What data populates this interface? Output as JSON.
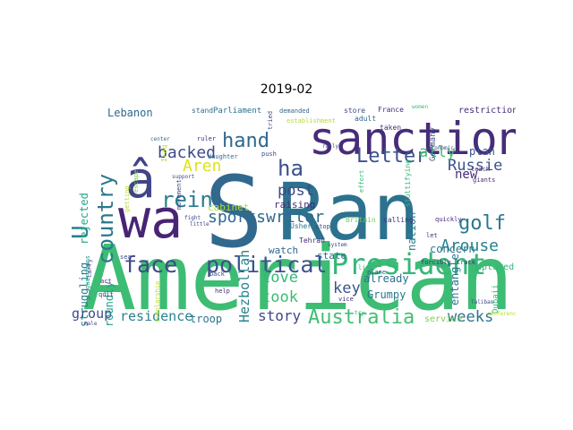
{
  "title": "2019-02",
  "chart_data": {
    "type": "wordcloud",
    "title": "2019-02",
    "colormap": "viridis",
    "background": "#ffffff",
    "words": [
      {
        "text": "American",
        "color": "#3dbc74"
      },
      {
        "text": "Ran",
        "color": "#2c728e"
      },
      {
        "text": "S",
        "color": "#31688e"
      },
      {
        "text": "wa",
        "color": "#482475"
      },
      {
        "text": "â",
        "color": "#414487"
      },
      {
        "text": "sanction",
        "color": "#472c7a"
      },
      {
        "text": "President",
        "color": "#35b779"
      },
      {
        "text": "political",
        "color": "#3b528b"
      },
      {
        "text": "face",
        "color": "#3e4989"
      },
      {
        "text": "ha",
        "color": "#3b528b"
      },
      {
        "text": "country",
        "color": "#2a788e"
      },
      {
        "text": "rein",
        "color": "#287c8e"
      },
      {
        "text": "Letter",
        "color": "#3b528b"
      },
      {
        "text": "U",
        "color": "#277f8e"
      },
      {
        "text": "hand",
        "color": "#31688e"
      },
      {
        "text": "Australia",
        "color": "#42be71"
      },
      {
        "text": "sportswriter",
        "color": "#30698e"
      },
      {
        "text": "backed",
        "color": "#3e4a89"
      },
      {
        "text": "residence",
        "color": "#26828e"
      },
      {
        "text": "Aren",
        "color": "#dde318"
      },
      {
        "text": "golf",
        "color": "#2a788e"
      },
      {
        "text": "Arouse",
        "color": "#26828e"
      },
      {
        "text": "story",
        "color": "#3e4989"
      },
      {
        "text": "weeks",
        "color": "#2c718e"
      },
      {
        "text": "Russie",
        "color": "#3b528b"
      },
      {
        "text": "ally",
        "color": "#44bf70"
      },
      {
        "text": "post",
        "color": "#3e4989"
      },
      {
        "text": "took",
        "color": "#3dbc74"
      },
      {
        "text": "love",
        "color": "#35b779"
      },
      {
        "text": "key",
        "color": "#3b528b"
      },
      {
        "text": "Hezbollah",
        "color": "#25838e"
      },
      {
        "text": "group",
        "color": "#3e4a89"
      },
      {
        "text": "Lebanon",
        "color": "#31688e"
      },
      {
        "text": "new",
        "color": "#472c7a"
      },
      {
        "text": "entangle",
        "color": "#2a788e"
      },
      {
        "text": "troop",
        "color": "#2c728e"
      },
      {
        "text": "struggling",
        "color": "#277f8e"
      },
      {
        "text": "roundly",
        "color": "#1fa088"
      },
      {
        "text": "rejected",
        "color": "#22a884"
      },
      {
        "text": "plan",
        "color": "#3b528b"
      },
      {
        "text": "nation",
        "color": "#27808e"
      },
      {
        "text": "Grumpy",
        "color": "#2a788e"
      },
      {
        "text": "already",
        "color": "#2c718e"
      },
      {
        "text": "concern",
        "color": "#2a788e"
      },
      {
        "text": "state",
        "color": "#31688e"
      },
      {
        "text": "watch",
        "color": "#31688e"
      },
      {
        "text": "raising",
        "color": "#472d7b"
      },
      {
        "text": "cabinet",
        "color": "#b5de2b"
      },
      {
        "text": "Parliament",
        "color": "#2c718e"
      },
      {
        "text": "restriction",
        "color": "#472d7b"
      },
      {
        "text": "captured",
        "color": "#35b779"
      },
      {
        "text": "service",
        "color": "#7ad151"
      },
      {
        "text": "Dubaii",
        "color": "#35b779"
      },
      {
        "text": "Britain",
        "color": "#6ece58"
      },
      {
        "text": "calling",
        "color": "#472d7b"
      },
      {
        "text": "France",
        "color": "#472d7b"
      },
      {
        "text": "store",
        "color": "#3e4a89"
      },
      {
        "text": "adult",
        "color": "#31688e"
      },
      {
        "text": "Germany",
        "color": "#3b528b"
      },
      {
        "text": "stultifying",
        "color": "#35b779"
      },
      {
        "text": "Tehran",
        "color": "#472d7b"
      },
      {
        "text": "Usher",
        "color": "#2c718e"
      },
      {
        "text": "stand",
        "color": "#31688e"
      },
      {
        "text": "women",
        "color": "#3dbc74"
      },
      {
        "text": "taken",
        "color": "#472d7b"
      },
      {
        "text": "demanded",
        "color": "#31688e"
      },
      {
        "text": "establishment",
        "color": "#b5de2b"
      },
      {
        "text": "push",
        "color": "#3e4a89"
      },
      {
        "text": "ruler",
        "color": "#472d7b"
      },
      {
        "text": "daughter",
        "color": "#31688e"
      },
      {
        "text": "Iraq",
        "color": "#b5de2b"
      },
      {
        "text": "back",
        "color": "#3e4a89"
      },
      {
        "text": "quickly",
        "color": "#472c7a"
      },
      {
        "text": "forcibly",
        "color": "#472d7b"
      },
      {
        "text": "track",
        "color": "#472d7b"
      },
      {
        "text": "life",
        "color": "#35b779"
      },
      {
        "text": "plane",
        "color": "#3e4a89"
      },
      {
        "text": "vice",
        "color": "#472d7b"
      },
      {
        "text": "help",
        "color": "#472d7b"
      },
      {
        "text": "quit",
        "color": "#472d7b"
      },
      {
        "text": "act",
        "color": "#472d7b"
      },
      {
        "text": "sea",
        "color": "#3e4a89"
      },
      {
        "text": "guardians",
        "color": "#1fa088"
      },
      {
        "text": "male",
        "color": "#3e4a89"
      },
      {
        "text": "teach",
        "color": "#472d7b"
      },
      {
        "text": "giants",
        "color": "#472d7b"
      },
      {
        "text": "let",
        "color": "#472d7b"
      },
      {
        "text": "economic",
        "color": "#3e4a89"
      },
      {
        "text": "effort",
        "color": "#35b779"
      },
      {
        "text": "tried",
        "color": "#3e4a89"
      },
      {
        "text": "escape",
        "color": "#7ad151"
      },
      {
        "text": "movement",
        "color": "#3e4a89"
      },
      {
        "text": "scholarship",
        "color": "#b5de2b"
      },
      {
        "text": "carry",
        "color": "#3e4a89"
      },
      {
        "text": "getting",
        "color": "#b5de2b"
      },
      {
        "text": "support",
        "color": "#3e4a89"
      },
      {
        "text": "center",
        "color": "#31688e"
      },
      {
        "text": "conference",
        "color": "#b5de2b"
      },
      {
        "text": "stop",
        "color": "#3e4a89"
      },
      {
        "text": "fight",
        "color": "#3e4a89"
      },
      {
        "text": "little",
        "color": "#3e4a89"
      },
      {
        "text": "rally",
        "color": "#3e4a89"
      },
      {
        "text": "try",
        "color": "#35b779"
      },
      {
        "text": "system",
        "color": "#3e4a89"
      },
      {
        "text": "Taliban",
        "color": "#3e4a89"
      }
    ]
  }
}
